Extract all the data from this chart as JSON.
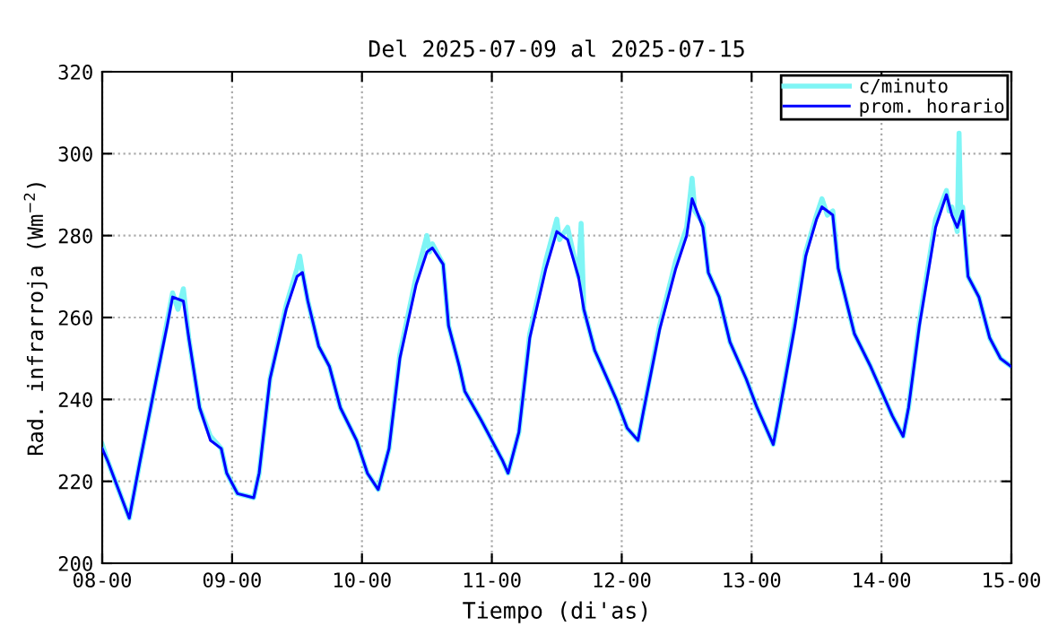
{
  "chart_data": {
    "type": "line",
    "title": "Del 2025-07-09 al 2025-07-15",
    "xlabel": "Tiempo (di'as)",
    "ylabel": "Rad. infrarroja (Wm$^{−2}$)",
    "xlim": [
      "2025-07-08",
      "2025-07-15"
    ],
    "xticks": [
      {
        "value": "2025-07-08",
        "label": "08-00"
      },
      {
        "value": "2025-07-09",
        "label": "09-00"
      },
      {
        "value": "2025-07-10",
        "label": "10-00"
      },
      {
        "value": "2025-07-11",
        "label": "11-00"
      },
      {
        "value": "2025-07-12",
        "label": "12-00"
      },
      {
        "value": "2025-07-13",
        "label": "13-00"
      },
      {
        "value": "2025-07-14",
        "label": "14-00"
      },
      {
        "value": "2025-07-15",
        "label": "15-00"
      }
    ],
    "ylim": [
      200,
      320
    ],
    "yticks": [
      200,
      220,
      240,
      260,
      280,
      300,
      320
    ],
    "grid": true,
    "legend": "top right",
    "line_style": "solid",
    "marker": "none",
    "series": [
      {
        "name": "c/minuto",
        "color": "#7ff5f5",
        "x": [
          "2025-07-08T00:00",
          "2025-07-08T01:00",
          "2025-07-08T03:00",
          "2025-07-08T05:00",
          "2025-07-08T07:00",
          "2025-07-08T10:00",
          "2025-07-08T12:00",
          "2025-07-08T13:00",
          "2025-07-08T14:00",
          "2025-07-08T15:00",
          "2025-07-08T16:00",
          "2025-07-08T18:00",
          "2025-07-08T20:00",
          "2025-07-08T22:00",
          "2025-07-08T23:00",
          "2025-07-09T01:00",
          "2025-07-09T04:00",
          "2025-07-09T05:00",
          "2025-07-09T07:00",
          "2025-07-09T10:00",
          "2025-07-09T12:00",
          "2025-07-09T12:30",
          "2025-07-09T13:00",
          "2025-07-09T14:00",
          "2025-07-09T16:00",
          "2025-07-09T18:00",
          "2025-07-09T20:00",
          "2025-07-09T23:00",
          "2025-07-10T01:00",
          "2025-07-10T03:00",
          "2025-07-10T05:00",
          "2025-07-10T07:00",
          "2025-07-10T10:00",
          "2025-07-10T12:00",
          "2025-07-10T12:30",
          "2025-07-10T13:00",
          "2025-07-10T15:00",
          "2025-07-10T16:00",
          "2025-07-10T18:00",
          "2025-07-10T19:00",
          "2025-07-10T22:00",
          "2025-07-11T00:00",
          "2025-07-11T02:00",
          "2025-07-11T03:00",
          "2025-07-11T05:00",
          "2025-07-11T07:00",
          "2025-07-11T10:00",
          "2025-07-11T12:00",
          "2025-07-11T12:30",
          "2025-07-11T14:00",
          "2025-07-11T16:00",
          "2025-07-11T16:30",
          "2025-07-11T17:00",
          "2025-07-11T19:00",
          "2025-07-11T21:00",
          "2025-07-11T23:00",
          "2025-07-12T01:00",
          "2025-07-12T03:00",
          "2025-07-12T04:00",
          "2025-07-12T07:00",
          "2025-07-12T10:00",
          "2025-07-12T12:00",
          "2025-07-12T13:00",
          "2025-07-12T13:30",
          "2025-07-12T15:00",
          "2025-07-12T16:00",
          "2025-07-12T18:00",
          "2025-07-12T20:00",
          "2025-07-12T23:00",
          "2025-07-13T01:00",
          "2025-07-13T03:00",
          "2025-07-13T04:00",
          "2025-07-13T05:00",
          "2025-07-13T08:00",
          "2025-07-13T10:00",
          "2025-07-13T12:00",
          "2025-07-13T13:00",
          "2025-07-13T14:00",
          "2025-07-13T15:00",
          "2025-07-13T16:00",
          "2025-07-13T19:00",
          "2025-07-13T22:00",
          "2025-07-14T00:00",
          "2025-07-14T02:00",
          "2025-07-14T04:00",
          "2025-07-14T05:00",
          "2025-07-14T07:00",
          "2025-07-14T10:00",
          "2025-07-14T12:00",
          "2025-07-14T12:30",
          "2025-07-14T13:00",
          "2025-07-14T14:00",
          "2025-07-14T14:20",
          "2025-07-14T14:40",
          "2025-07-14T15:00",
          "2025-07-14T16:00",
          "2025-07-14T18:00",
          "2025-07-14T20:00",
          "2025-07-14T22:00",
          "2025-07-15T00:00"
        ],
        "values": [
          229,
          225,
          218,
          211,
          225,
          245,
          259,
          266,
          262,
          267,
          255,
          238,
          231,
          228,
          222,
          217,
          216,
          222,
          245,
          263,
          272,
          275,
          271,
          264,
          253,
          248,
          238,
          230,
          222,
          218,
          228,
          251,
          270,
          280,
          276,
          278,
          273,
          258,
          248,
          242,
          235,
          230,
          225,
          222,
          232,
          256,
          274,
          284,
          279,
          282,
          270,
          283,
          262,
          252,
          246,
          240,
          233,
          230,
          237,
          258,
          274,
          282,
          294,
          286,
          283,
          271,
          265,
          254,
          245,
          238,
          232,
          229,
          236,
          259,
          276,
          285,
          289,
          285,
          286,
          272,
          256,
          248,
          242,
          236,
          231,
          238,
          259,
          284,
          291,
          286,
          287,
          281,
          305,
          283,
          287,
          270,
          265,
          255,
          250,
          248
        ]
      },
      {
        "name": "prom. horario",
        "color": "#0000ff",
        "x": [
          "2025-07-08T00:00",
          "2025-07-08T01:00",
          "2025-07-08T03:00",
          "2025-07-08T05:00",
          "2025-07-08T07:00",
          "2025-07-08T10:00",
          "2025-07-08T12:00",
          "2025-07-08T13:00",
          "2025-07-08T15:00",
          "2025-07-08T16:00",
          "2025-07-08T18:00",
          "2025-07-08T20:00",
          "2025-07-08T22:00",
          "2025-07-08T23:00",
          "2025-07-09T01:00",
          "2025-07-09T04:00",
          "2025-07-09T05:00",
          "2025-07-09T07:00",
          "2025-07-09T10:00",
          "2025-07-09T12:00",
          "2025-07-09T13:00",
          "2025-07-09T14:00",
          "2025-07-09T16:00",
          "2025-07-09T18:00",
          "2025-07-09T20:00",
          "2025-07-09T23:00",
          "2025-07-10T01:00",
          "2025-07-10T03:00",
          "2025-07-10T05:00",
          "2025-07-10T07:00",
          "2025-07-10T10:00",
          "2025-07-10T12:00",
          "2025-07-10T13:00",
          "2025-07-10T15:00",
          "2025-07-10T16:00",
          "2025-07-10T18:00",
          "2025-07-10T19:00",
          "2025-07-10T22:00",
          "2025-07-11T00:00",
          "2025-07-11T02:00",
          "2025-07-11T03:00",
          "2025-07-11T05:00",
          "2025-07-11T07:00",
          "2025-07-11T10:00",
          "2025-07-11T12:00",
          "2025-07-11T14:00",
          "2025-07-11T16:00",
          "2025-07-11T17:00",
          "2025-07-11T19:00",
          "2025-07-11T21:00",
          "2025-07-11T23:00",
          "2025-07-12T01:00",
          "2025-07-12T03:00",
          "2025-07-12T04:00",
          "2025-07-12T07:00",
          "2025-07-12T10:00",
          "2025-07-12T12:00",
          "2025-07-12T13:00",
          "2025-07-12T15:00",
          "2025-07-12T16:00",
          "2025-07-12T18:00",
          "2025-07-12T20:00",
          "2025-07-12T23:00",
          "2025-07-13T01:00",
          "2025-07-13T03:00",
          "2025-07-13T04:00",
          "2025-07-13T05:00",
          "2025-07-13T08:00",
          "2025-07-13T10:00",
          "2025-07-13T12:00",
          "2025-07-13T13:00",
          "2025-07-13T15:00",
          "2025-07-13T16:00",
          "2025-07-13T19:00",
          "2025-07-13T22:00",
          "2025-07-14T00:00",
          "2025-07-14T02:00",
          "2025-07-14T04:00",
          "2025-07-14T05:00",
          "2025-07-14T07:00",
          "2025-07-14T10:00",
          "2025-07-14T12:00",
          "2025-07-14T13:00",
          "2025-07-14T14:00",
          "2025-07-14T15:00",
          "2025-07-14T16:00",
          "2025-07-14T18:00",
          "2025-07-14T20:00",
          "2025-07-14T22:00",
          "2025-07-15T00:00"
        ],
        "values": [
          228,
          225,
          218,
          211,
          225,
          245,
          258,
          265,
          264,
          255,
          238,
          230,
          228,
          222,
          217,
          216,
          222,
          245,
          262,
          270,
          271,
          264,
          253,
          248,
          238,
          230,
          222,
          218,
          228,
          250,
          268,
          276,
          277,
          273,
          258,
          248,
          242,
          235,
          230,
          225,
          222,
          232,
          255,
          272,
          281,
          279,
          270,
          262,
          252,
          246,
          240,
          233,
          230,
          237,
          257,
          272,
          280,
          289,
          282,
          271,
          265,
          254,
          245,
          238,
          232,
          229,
          236,
          258,
          275,
          284,
          287,
          285,
          272,
          256,
          248,
          242,
          236,
          231,
          238,
          258,
          282,
          290,
          285,
          282,
          286,
          270,
          265,
          255,
          250,
          248
        ]
      }
    ]
  }
}
